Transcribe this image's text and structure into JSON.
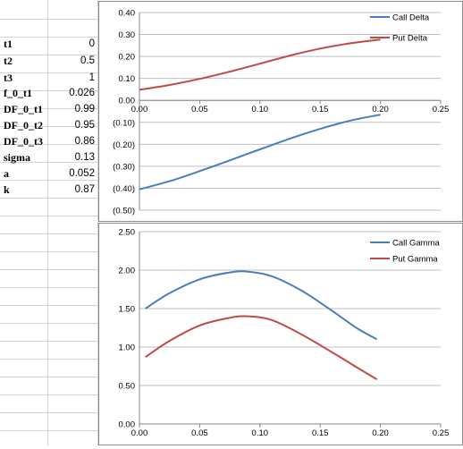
{
  "sheet": {
    "rows": [
      {
        "label": "t1",
        "value": "0"
      },
      {
        "label": "t2",
        "value": "0.5"
      },
      {
        "label": "t3",
        "value": "1"
      },
      {
        "label": "f_0_t1",
        "value": "0.026"
      },
      {
        "label": "DF_0_t1",
        "value": "0.99"
      },
      {
        "label": "DF_0_t2",
        "value": "0.95"
      },
      {
        "label": "DF_0_t3",
        "value": "0.86"
      },
      {
        "label": "sigma",
        "value": "0.13"
      },
      {
        "label": "a",
        "value": "0.052"
      },
      {
        "label": "k",
        "value": "0.87"
      }
    ]
  },
  "chart_data": [
    {
      "type": "line",
      "title": "",
      "xlabel": "",
      "ylabel": "",
      "xlim": [
        0,
        0.25
      ],
      "ylim": [
        -0.5,
        0.4
      ],
      "x_ticks": [
        "0.00",
        "0.05",
        "0.10",
        "0.15",
        "0.20",
        "0.25"
      ],
      "y_ticks": [
        {
          "v": 0.4,
          "label": "0.40"
        },
        {
          "v": 0.3,
          "label": "0.30"
        },
        {
          "v": 0.2,
          "label": "0.20"
        },
        {
          "v": 0.1,
          "label": "0.10"
        },
        {
          "v": 0.0,
          "label": "0.00"
        },
        {
          "v": -0.1,
          "label": "(0.10)"
        },
        {
          "v": -0.2,
          "label": "(0.20)"
        },
        {
          "v": -0.3,
          "label": "(0.30)"
        },
        {
          "v": -0.4,
          "label": "(0.40)"
        },
        {
          "v": -0.5,
          "label": "(0.50)"
        }
      ],
      "x_axis_at": 0,
      "grid": true,
      "legend_position": "top-right",
      "series": [
        {
          "name": "Call Delta",
          "color": "#4a7ebb",
          "x": [
            0,
            0.025,
            0.05,
            0.075,
            0.1,
            0.125,
            0.15,
            0.175,
            0.2
          ],
          "y": [
            -0.405,
            -0.368,
            -0.322,
            -0.273,
            -0.223,
            -0.174,
            -0.13,
            -0.092,
            -0.065
          ]
        },
        {
          "name": "Put Delta",
          "color": "#be4b48",
          "x": [
            0,
            0.025,
            0.05,
            0.075,
            0.1,
            0.125,
            0.15,
            0.175,
            0.2
          ],
          "y": [
            0.048,
            0.07,
            0.098,
            0.131,
            0.167,
            0.204,
            0.236,
            0.26,
            0.277
          ]
        }
      ]
    },
    {
      "type": "line",
      "title": "",
      "xlabel": "",
      "ylabel": "",
      "xlim": [
        0,
        0.25
      ],
      "ylim": [
        0,
        2.5
      ],
      "x_ticks": [
        "0.00",
        "0.05",
        "0.10",
        "0.15",
        "0.20",
        "0.25"
      ],
      "y_ticks": [
        {
          "v": 2.5,
          "label": "2.50"
        },
        {
          "v": 2.0,
          "label": "2.00"
        },
        {
          "v": 1.5,
          "label": "1.50"
        },
        {
          "v": 1.0,
          "label": "1.00"
        },
        {
          "v": 0.5,
          "label": "0.50"
        },
        {
          "v": 0.0,
          "label": "0.00"
        }
      ],
      "x_axis_at": 0,
      "grid": true,
      "legend_position": "top-right",
      "series": [
        {
          "name": "Call Gamma",
          "color": "#4a7ebb",
          "x": [
            0.005,
            0.025,
            0.05,
            0.075,
            0.09,
            0.11,
            0.135,
            0.16,
            0.18,
            0.197
          ],
          "y": [
            1.5,
            1.7,
            1.88,
            1.97,
            1.98,
            1.92,
            1.73,
            1.47,
            1.25,
            1.1
          ]
        },
        {
          "name": "Put Gamma",
          "color": "#be4b48",
          "x": [
            0.005,
            0.025,
            0.05,
            0.075,
            0.09,
            0.11,
            0.135,
            0.16,
            0.18,
            0.197
          ],
          "y": [
            0.87,
            1.08,
            1.28,
            1.38,
            1.4,
            1.35,
            1.16,
            0.93,
            0.74,
            0.58
          ]
        }
      ]
    }
  ]
}
